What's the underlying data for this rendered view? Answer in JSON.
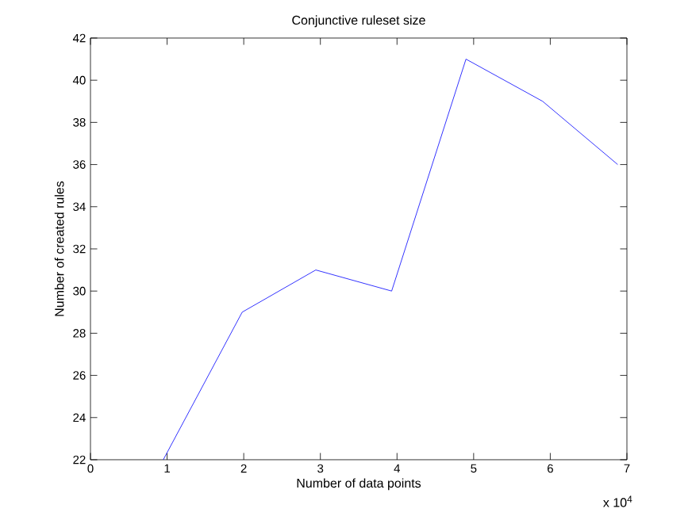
{
  "chart_data": {
    "type": "line",
    "title": "Conjunctive ruleset size",
    "xlabel": "Number of data points",
    "ylabel": "Number of created rules",
    "x": [
      0.95,
      1.98,
      2.94,
      3.93,
      4.9,
      5.9,
      6.88
    ],
    "series": [
      {
        "color": "#0000ff",
        "values": [
          22,
          29,
          31,
          30,
          41,
          39,
          36
        ]
      }
    ],
    "xlim": [
      0,
      7
    ],
    "ylim": [
      22,
      42
    ],
    "xticks": [
      0,
      1,
      2,
      3,
      4,
      5,
      6,
      7
    ],
    "yticks": [
      22,
      24,
      26,
      28,
      30,
      32,
      34,
      36,
      38,
      40,
      42
    ],
    "annotations": [
      "x 10$^{4}$"
    ],
    "grid": false,
    "marker": "none",
    "line_style": "solid"
  }
}
